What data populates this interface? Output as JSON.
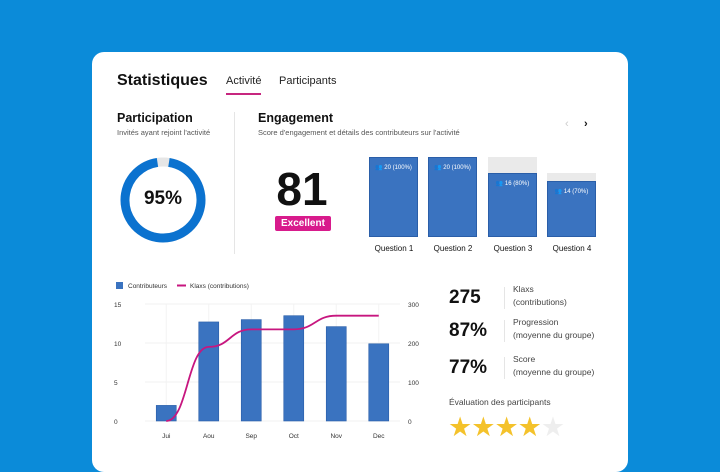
{
  "header": {
    "title": "Statistiques",
    "tabs": [
      {
        "label": "Activité",
        "active": true
      },
      {
        "label": "Participants",
        "active": false
      }
    ]
  },
  "participation": {
    "title": "Participation",
    "subtitle": "Invités ayant rejoint l'activité",
    "percent_label": "95%",
    "value": 95
  },
  "engagement": {
    "title": "Engagement",
    "subtitle": "Score d'engagement et détails des contributeurs sur l'activité",
    "score": "81",
    "badge": "Excellent",
    "questions": [
      {
        "label": "Question 1",
        "text": "20 (100%)",
        "pct": 100
      },
      {
        "label": "Question 2",
        "text": "20 (100%)",
        "pct": 100
      },
      {
        "label": "Question 3",
        "text": "16 (80%)",
        "pct": 80
      },
      {
        "label": "Question 4",
        "text": "14 (70%)",
        "pct": 70
      }
    ]
  },
  "stats": [
    {
      "value": "275",
      "label1": "Klaxs",
      "label2": "(contributions)"
    },
    {
      "value": "87%",
      "label1": "Progression",
      "label2": "(moyenne du groupe)"
    },
    {
      "value": "77%",
      "label1": "Score",
      "label2": "(moyenne du groupe)"
    }
  ],
  "rating": {
    "label": "Évaluation des participants",
    "stars": 4,
    "max": 5
  },
  "colors": {
    "background": "#0b8bd9",
    "bar": "#3a73c0",
    "line": "#c7167f",
    "accent": "#d81b8c",
    "star": "#f4c22b"
  },
  "chart_data": {
    "type": "bar",
    "categories": [
      "Jui",
      "Aou",
      "Sep",
      "Oct",
      "Nov",
      "Dec"
    ],
    "series": [
      {
        "name": "Contributeurs",
        "type": "bar",
        "axis": "left",
        "values": [
          2,
          12.7,
          13,
          13.5,
          12.1,
          9.9
        ]
      },
      {
        "name": "Klaxs (contributions)",
        "type": "line",
        "axis": "right",
        "values": [
          0,
          190,
          235,
          235,
          270,
          270
        ]
      }
    ],
    "ylim": [
      0,
      15
    ],
    "yticks": [
      "0",
      "5",
      "10",
      "15"
    ],
    "y2lim": [
      0,
      300
    ],
    "y2ticks": [
      "0",
      "100",
      "200",
      "300"
    ],
    "legend": "top-left",
    "grid": true
  }
}
